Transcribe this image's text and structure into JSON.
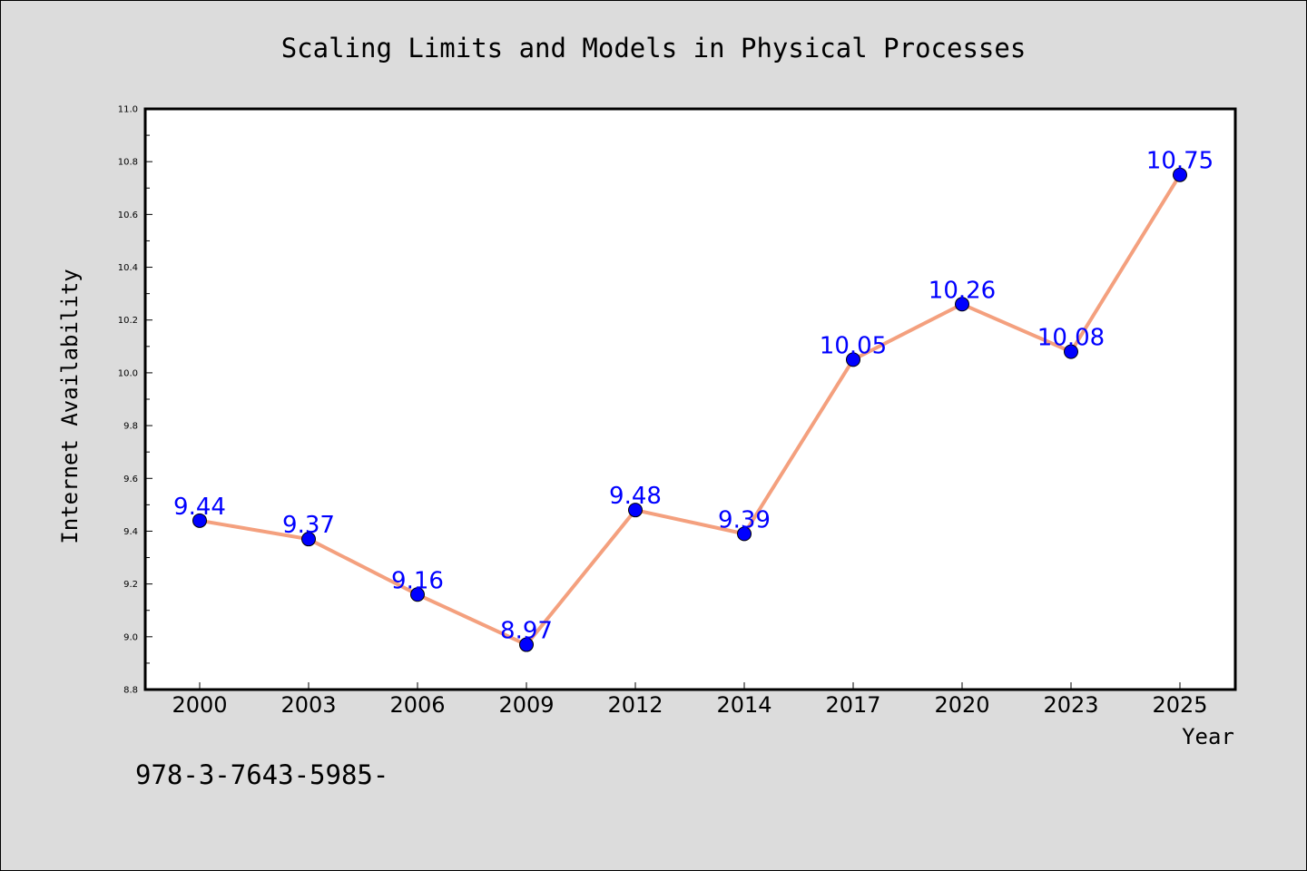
{
  "chart_data": {
    "type": "line",
    "title": "Scaling Limits and Models in Physical Processes",
    "xlabel": "Year",
    "ylabel": "Internet Availability",
    "categories": [
      "2000",
      "2003",
      "2006",
      "2009",
      "2012",
      "2014",
      "2017",
      "2020",
      "2023",
      "2025"
    ],
    "values": [
      9.44,
      9.37,
      9.16,
      8.97,
      9.48,
      9.39,
      10.05,
      10.26,
      10.08,
      10.75
    ],
    "data_labels": [
      "9.44",
      "9.37",
      "9.16",
      "8.97",
      "9.48",
      "9.39",
      "10.05",
      "10.26",
      "10.08",
      "10.75"
    ],
    "ylim": [
      8.8,
      11.0
    ],
    "yticks": [
      "8.8",
      "9.0",
      "9.2",
      "9.4",
      "9.6",
      "9.8",
      "10.0",
      "10.2",
      "10.4",
      "10.6",
      "10.8",
      "11.0"
    ],
    "grid": false,
    "line_color": "#f4a07e",
    "marker_color": "#0000ff",
    "label_color": "#0000ff"
  },
  "footer": {
    "text": "978-3-7643-5985-"
  }
}
